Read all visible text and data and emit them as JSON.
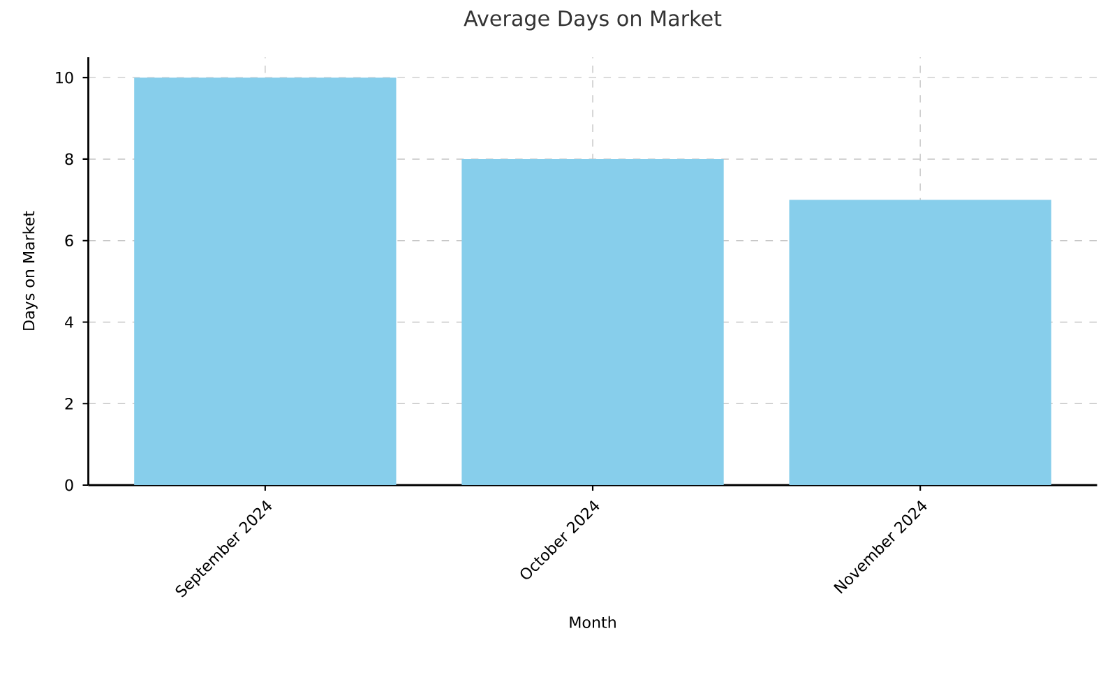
{
  "chart_data": {
    "type": "bar",
    "title": "Average Days on Market",
    "xlabel": "Month",
    "ylabel": "Days on Market",
    "categories": [
      "September 2024",
      "October 2024",
      "November 2024"
    ],
    "values": [
      10,
      8,
      7
    ],
    "color": "#87ceeb",
    "ylim": [
      0,
      10.5
    ],
    "yticks": [
      0,
      2,
      4,
      6,
      8,
      10
    ],
    "grid": true
  }
}
